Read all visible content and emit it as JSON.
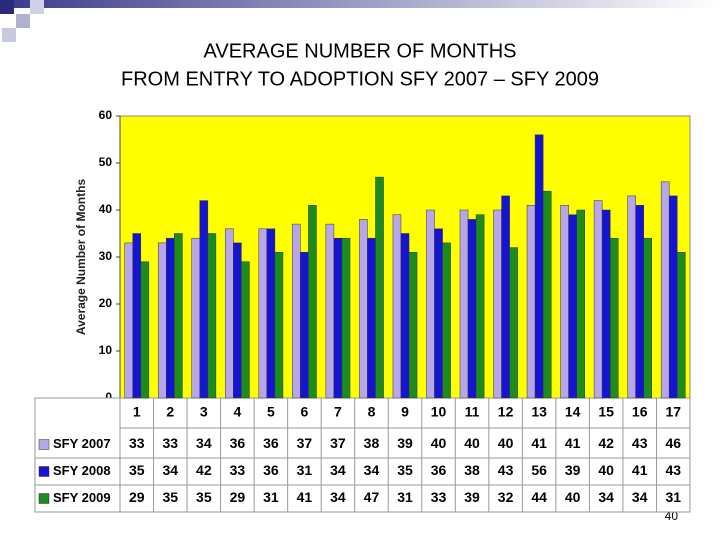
{
  "chart_data": {
    "type": "bar",
    "title": [
      "AVERAGE NUMBER OF MONTHS",
      "FROM ENTRY TO ADOPTION SFY 2007 – SFY 2009"
    ],
    "y_label": "Average Number of Months",
    "categories": [
      "1",
      "2",
      "3",
      "4",
      "5",
      "6",
      "7",
      "8",
      "9",
      "10",
      "11",
      "12",
      "13",
      "14",
      "15",
      "16",
      "17"
    ],
    "series": [
      {
        "name": "SFY 2007",
        "color": "#b7a6ea",
        "values": [
          33,
          33,
          34,
          36,
          36,
          37,
          37,
          38,
          39,
          40,
          40,
          40,
          41,
          41,
          42,
          43,
          46
        ]
      },
      {
        "name": "SFY 2008",
        "color": "#1414d2",
        "values": [
          35,
          34,
          42,
          33,
          36,
          31,
          34,
          34,
          35,
          36,
          38,
          43,
          56,
          39,
          40,
          41,
          43
        ]
      },
      {
        "name": "SFY 2009",
        "color": "#1c8c1c",
        "values": [
          29,
          35,
          35,
          29,
          31,
          41,
          34,
          47,
          31,
          33,
          39,
          32,
          44,
          40,
          34,
          34,
          31
        ]
      }
    ],
    "ylim": [
      0,
      60
    ],
    "yticks": [
      0,
      10,
      20,
      30,
      40,
      50,
      60
    ],
    "grid": false,
    "plot_color": "#ffff00"
  },
  "page_number": "40"
}
